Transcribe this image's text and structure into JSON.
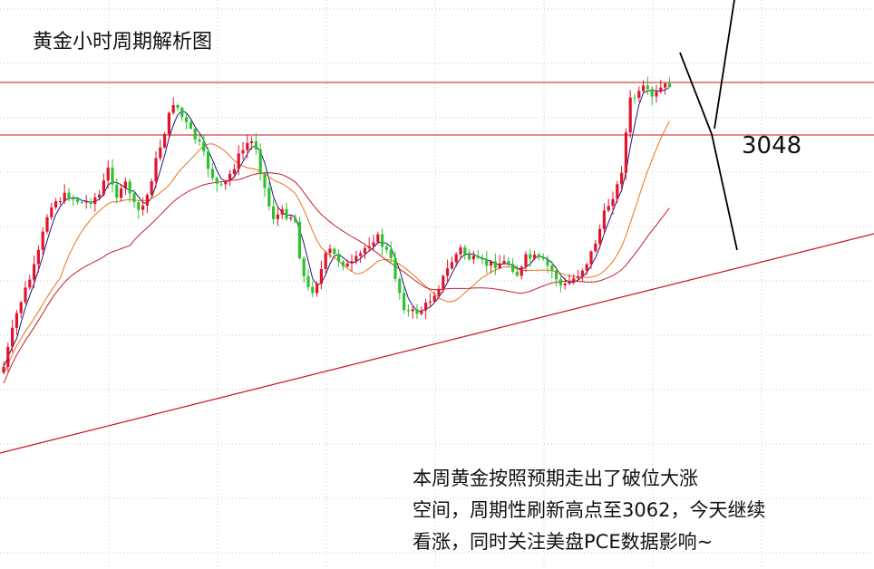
{
  "chart_data": {
    "type": "candlestick",
    "title": "黄金小时周期解析图",
    "level_label": "3048",
    "annotation_lines": [
      "本周黄金按照预期走出了破位大涨",
      "空间，周期性刷新高点至3062，今天继续",
      "看涨，同时关注美盘PCE数据影响~"
    ],
    "grid": true,
    "colors": {
      "up": "#e0142c",
      "down": "#2ec22e",
      "ma_short": "#1a1a7a",
      "ma_mid": "#e8741a",
      "ma_long": "#c81e2c",
      "support": "#c8141e"
    }
  }
}
